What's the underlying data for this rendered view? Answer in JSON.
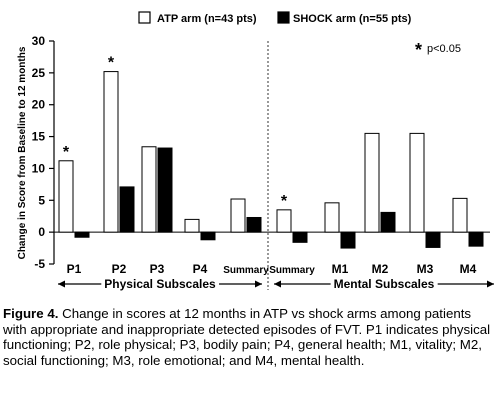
{
  "chart_data": {
    "type": "bar",
    "categories": [
      "P1",
      "P2",
      "P3",
      "P4",
      "Summary",
      "Summary",
      "M1",
      "M2",
      "M3",
      "M4"
    ],
    "series": [
      {
        "name": "ATP arm (n=43 pts)",
        "values": [
          11.2,
          25.2,
          13.4,
          2.0,
          5.2,
          3.5,
          4.6,
          15.5,
          15.5,
          5.3
        ],
        "color": "#ffffff"
      },
      {
        "name": "SHOCK arm (n=55 pts)",
        "values": [
          -0.8,
          7.1,
          13.2,
          -1.2,
          2.3,
          -1.6,
          -2.5,
          3.1,
          -2.4,
          -2.2
        ],
        "color": "#000000"
      }
    ],
    "ylabel": "Change in Score from Baseline to 12 months",
    "ylim": [
      -5,
      30
    ],
    "yticks": [
      -5,
      0,
      5,
      10,
      15,
      20,
      25,
      30
    ],
    "significance_note": "p<0.05",
    "significance_symbol": "*",
    "significant_points": [
      {
        "category_index": 0,
        "series": 0
      },
      {
        "category_index": 1,
        "series": 0
      },
      {
        "category_index": 5,
        "series": 0
      }
    ],
    "groups": [
      {
        "label": "Physical Subscales"
      },
      {
        "label": "Mental Subscales"
      }
    ],
    "grid": false,
    "legend_position": "top"
  },
  "caption": {
    "label": "Figure 4.",
    "text": " Change in scores at 12 months in ATP vs shock arms among patients with appropriate and inappropriate detected episodes of FVT. P1 indicates physical functioning; P2, role physical; P3, bodily pain; P4, general health; M1, vitality; M2, social functioning; M3, role emotional; and M4, mental health."
  }
}
